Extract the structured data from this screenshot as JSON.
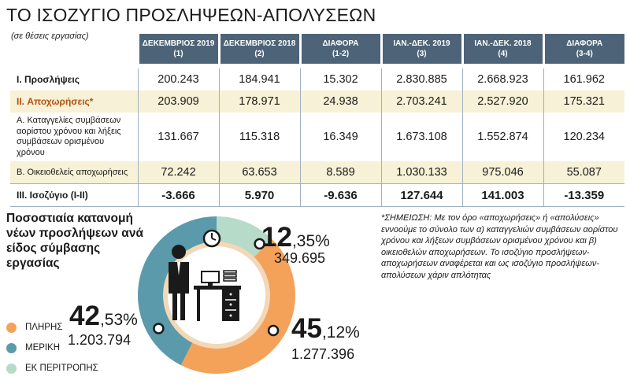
{
  "title": "ΤΟ ΙΣΟΖΥΓΙΟ ΠΡΟΣΛΗΨΕΩΝ-ΑΠΟΛΥΣΕΩΝ",
  "subtitle": "(σε θέσεις εργασίας)",
  "table": {
    "columns": [
      {
        "line1": "ΔΕΚΕΜΒΡΙΟΣ 2019",
        "line2": "(1)"
      },
      {
        "line1": "ΔΕΚΕΜΒΡΙΟΣ 2018",
        "line2": "(2)"
      },
      {
        "line1": "ΔΙΑΦΟΡΑ",
        "line2": "(1-2)"
      },
      {
        "line1": "ΙΑΝ.-ΔΕΚ. 2019",
        "line2": "(3)"
      },
      {
        "line1": "ΙΑΝ.-ΔΕΚ. 2018",
        "line2": "(4)"
      },
      {
        "line1": "ΔΙΑΦΟΡΑ",
        "line2": "(3-4)"
      }
    ],
    "rows": [
      {
        "label": "I. Προσλήψεις",
        "values": [
          "200.243",
          "184.941",
          "15.302",
          "2.830.885",
          "2.668.923",
          "161.962"
        ]
      },
      {
        "label": "II. Αποχωρήσεις*",
        "values": [
          "203.909",
          "178.971",
          "24.938",
          "2.703.241",
          "2.527.920",
          "175.321"
        ]
      },
      {
        "label": "Α. Καταγγελίες συμβάσεων αορίστου χρόνου και λήξεις συμβάσεων ορισμένου χρόνου",
        "values": [
          "131.667",
          "115.318",
          "16.349",
          "1.673.108",
          "1.552.874",
          "120.234"
        ]
      },
      {
        "label": "Β. Οικειοθελείς αποχωρήσεις",
        "values": [
          "72.242",
          "63.653",
          "8.589",
          "1.030.133",
          "975.046",
          "55.087"
        ]
      },
      {
        "label": "III. Ισοζύγιο (I-II)",
        "values": [
          "-3.666",
          "5.970",
          "-9.636",
          "127.644",
          "141.003",
          "-13.359"
        ]
      }
    ]
  },
  "chart_title": "Ποσοστιαία κατανομή νέων προσλήψεων ανά είδος σύμβασης εργασίας",
  "legend": [
    {
      "label": "ΠΛΗΡΗΣ",
      "color": "#f4a259"
    },
    {
      "label": "ΜΕΡΙΚΗ",
      "color": "#5a9aab"
    },
    {
      "label": "ΕΚ ΠΕΡΙΤΡΟΠΗΣ",
      "color": "#b6dbc9"
    }
  ],
  "labels": {
    "full": {
      "int": "45",
      "dec": ",12",
      "sym": "%",
      "abs": "1.277.396"
    },
    "part": {
      "int": "42",
      "dec": ",53",
      "sym": "%",
      "abs": "1.203.794"
    },
    "rot": {
      "int": "12",
      "dec": ",35",
      "sym": "%",
      "abs": "349.695"
    }
  },
  "note": "*ΣΗΜΕΙΩΣΗ: Με τον όρο «αποχωρήσεις» ή «απολύσεις» εννοούμε το σύνολο των α) καταγγελιών συμβάσεων αορίστου χρόνου και λήξεων συμβάσεων ορισμένου χρόνου και β) οικειοθελών αποχωρήσεων. Το ισοζύγιο προσλήψεων-αποχωρήσεων αναφέρεται και ως ισοζύγιο προσλήψεων-απολύσεων χάριν απλότητας",
  "chart_data": {
    "type": "pie",
    "title": "Ποσοστιαία κατανομή νέων προσλήψεων ανά είδος σύμβασης εργασίας",
    "categories": [
      "ΠΛΗΡΗΣ",
      "ΜΕΡΙΚΗ",
      "ΕΚ ΠΕΡΙΤΡΟΠΗΣ"
    ],
    "values": [
      45.12,
      42.53,
      12.35
    ],
    "counts": [
      1277396,
      1203794,
      349695
    ],
    "colors": [
      "#f4a259",
      "#5a9aab",
      "#b6dbc9"
    ],
    "legend": "left"
  }
}
